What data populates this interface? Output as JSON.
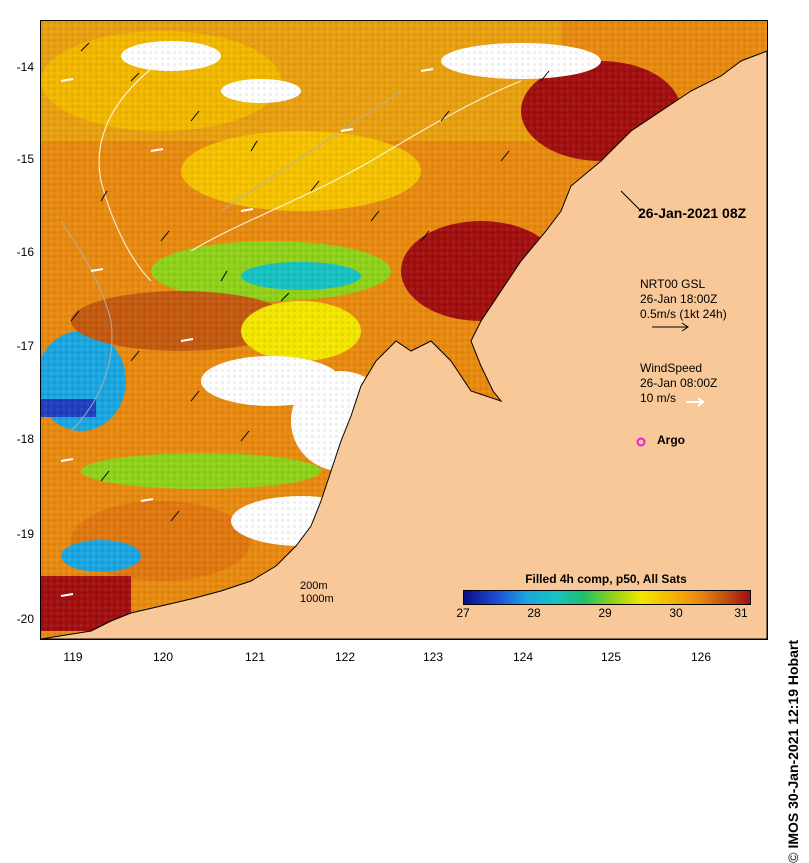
{
  "map": {
    "lon_ticks": [
      "119",
      "120",
      "121",
      "122",
      "123",
      "124",
      "125",
      "126"
    ],
    "lat_ticks": [
      "-14",
      "-15",
      "-16",
      "-17",
      "-18",
      "-19",
      "-20"
    ],
    "timestamp_label": "26-Jan-2021 08Z",
    "current_legend": {
      "line1": "NRT00 GSL",
      "line2": "26-Jan 18:00Z",
      "line3": "0.5m/s (1kt 24h)"
    },
    "wind_legend": {
      "line1": "WindSpeed",
      "line2": "26-Jan 08:00Z",
      "line3": "10 m/s"
    },
    "argo_label": "Argo",
    "depth_legend": [
      "200m",
      "1000m"
    ],
    "colorbar": {
      "title": "Filled 4h comp, p50, All Sats",
      "ticks": [
        "27",
        "28",
        "29",
        "30",
        "31"
      ]
    },
    "credit": "IMOS 30-Jan-2021 12:19 Hobart",
    "credit_symbol": "©",
    "colors": {
      "land": "#f8c898",
      "argo": "#e020e0",
      "hot": "#a10f0f",
      "cool": "#1fbf6a"
    }
  }
}
